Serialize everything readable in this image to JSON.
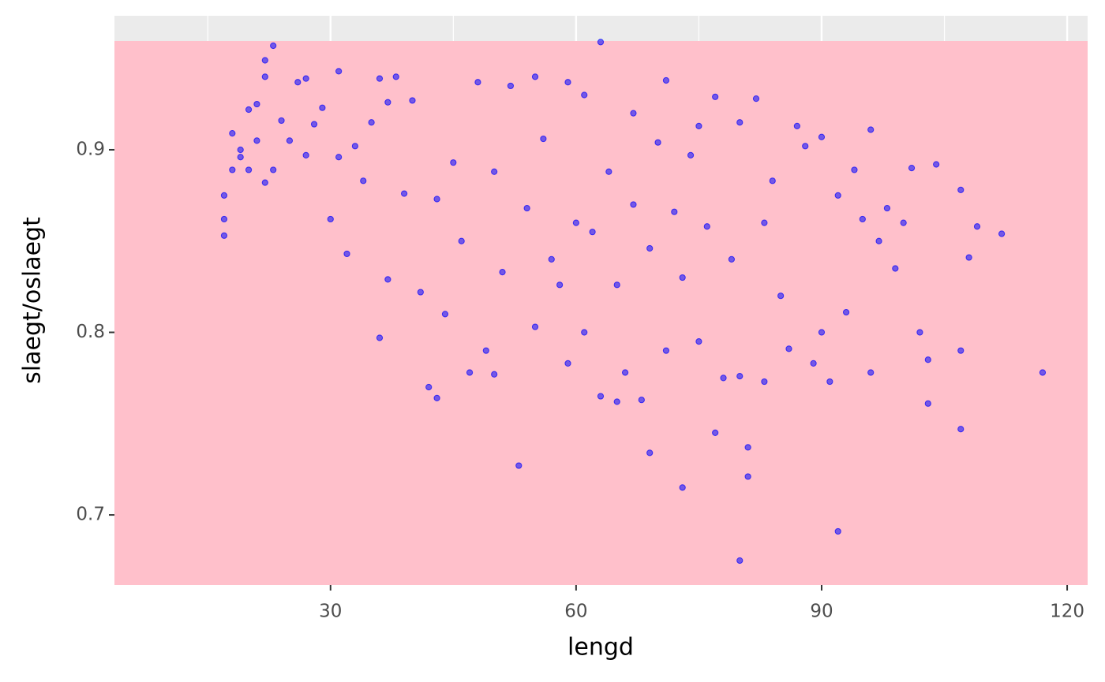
{
  "chart_data": {
    "type": "scatter",
    "x_label": "lengd",
    "y_label": "slaegt/oslaegt",
    "color": "#0000ff",
    "grid": true,
    "xlim": [
      3.6,
      122.5
    ],
    "ylim": [
      0.6616,
      0.9734
    ],
    "xticks": [
      30,
      60,
      90,
      120
    ],
    "xminorticks": [
      15,
      45,
      75,
      105
    ],
    "yticks": [
      0.7,
      0.8,
      0.9
    ],
    "x": [
      17,
      17,
      17,
      18,
      18,
      19,
      19,
      20,
      20,
      21,
      21,
      22,
      22,
      22,
      23,
      23,
      24,
      25,
      26,
      27,
      27,
      28,
      29,
      30,
      31,
      31,
      32,
      33,
      34,
      35,
      36,
      36,
      37,
      37,
      38,
      39,
      40,
      41,
      42,
      43,
      43,
      44,
      45,
      46,
      47,
      48,
      49,
      50,
      50,
      51,
      52,
      53,
      54,
      55,
      55,
      56,
      57,
      58,
      59,
      59,
      60,
      61,
      61,
      62,
      63,
      63,
      64,
      65,
      65,
      66,
      67,
      67,
      68,
      69,
      69,
      70,
      71,
      71,
      72,
      73,
      73,
      74,
      75,
      75,
      76,
      77,
      77,
      78,
      79,
      80,
      80,
      80,
      81,
      81,
      82,
      83,
      83,
      84,
      85,
      86,
      87,
      88,
      89,
      90,
      90,
      91,
      92,
      92,
      93,
      94,
      95,
      96,
      96,
      97,
      98,
      99,
      100,
      101,
      102,
      103,
      103,
      104,
      107,
      107,
      107,
      108,
      109,
      112,
      117
    ],
    "values": [
      0.875,
      0.862,
      0.853,
      0.909,
      0.889,
      0.9,
      0.896,
      0.922,
      0.889,
      0.925,
      0.905,
      0.949,
      0.94,
      0.882,
      0.957,
      0.889,
      0.916,
      0.905,
      0.937,
      0.939,
      0.897,
      0.914,
      0.923,
      0.862,
      0.943,
      0.896,
      0.843,
      0.902,
      0.883,
      0.915,
      0.939,
      0.797,
      0.926,
      0.829,
      0.94,
      0.876,
      0.927,
      0.822,
      0.77,
      0.764,
      0.873,
      0.81,
      0.893,
      0.85,
      0.778,
      0.937,
      0.79,
      0.888,
      0.777,
      0.833,
      0.935,
      0.727,
      0.868,
      0.94,
      0.803,
      0.906,
      0.84,
      0.826,
      0.937,
      0.783,
      0.86,
      0.93,
      0.8,
      0.855,
      0.959,
      0.765,
      0.888,
      0.762,
      0.826,
      0.778,
      0.92,
      0.87,
      0.763,
      0.734,
      0.846,
      0.904,
      0.938,
      0.79,
      0.866,
      0.715,
      0.83,
      0.897,
      0.913,
      0.795,
      0.858,
      0.745,
      0.929,
      0.775,
      0.84,
      0.915,
      0.675,
      0.776,
      0.737,
      0.721,
      0.928,
      0.773,
      0.86,
      0.883,
      0.82,
      0.791,
      0.913,
      0.902,
      0.783,
      0.907,
      0.8,
      0.773,
      0.691,
      0.875,
      0.811,
      0.889,
      0.862,
      0.911,
      0.778,
      0.85,
      0.868,
      0.835,
      0.86,
      0.89,
      0.8,
      0.761,
      0.785,
      0.892,
      0.878,
      0.747,
      0.79,
      0.841,
      0.858,
      0.854,
      0.778
    ]
  }
}
